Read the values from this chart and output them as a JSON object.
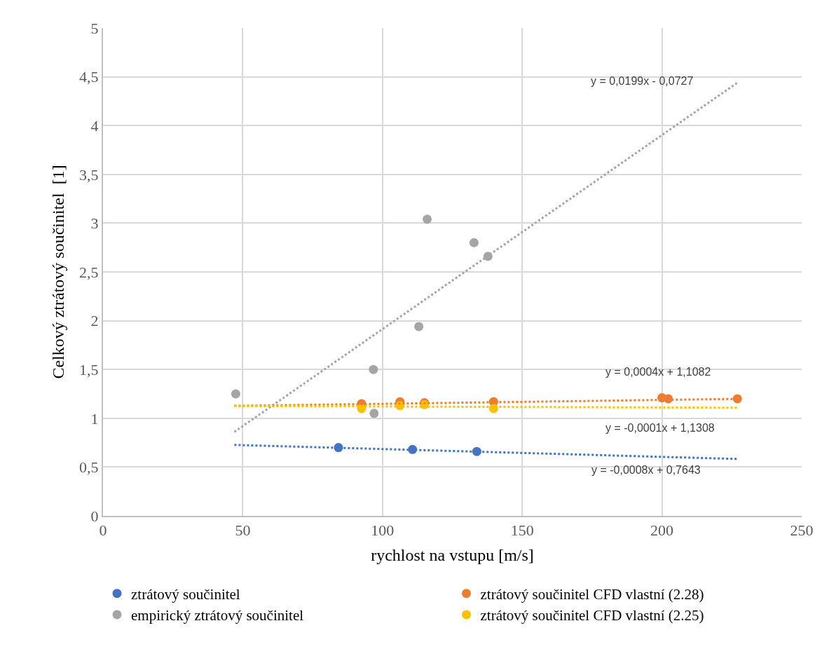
{
  "chart_data": {
    "type": "scatter",
    "xlabel": "rychlost na vstupu [m/s]",
    "ylabel": "Celkový ztrátový součinitel  [1]",
    "xlim": [
      0,
      250
    ],
    "xticks": [
      0,
      50,
      100,
      150,
      200,
      250
    ],
    "ylim": [
      0,
      5
    ],
    "yticks": [
      0,
      {
        "value": 0.5,
        "label": "0,5"
      },
      1,
      {
        "value": 1.5,
        "label": "1,5"
      },
      2,
      {
        "value": 2.5,
        "label": "2,5"
      },
      3,
      {
        "value": 3.5,
        "label": "3,5"
      },
      4,
      {
        "value": 4.5,
        "label": "4,5"
      },
      5
    ],
    "grid": true,
    "legend": "bottom",
    "marker": "circle",
    "series": [
      {
        "name": "ztrátový součinitel",
        "color": "#4472c4",
        "x": [
          84.25,
          110.75,
          133.75
        ],
        "values": [
          0.7,
          0.68,
          0.66
        ]
      },
      {
        "name": "ztrátový součinitel CFD vlastní (2.28)",
        "color": "#ed7d31",
        "x": [
          92.5,
          106.25,
          115,
          139.75,
          200,
          202.25,
          227
        ],
        "values": [
          1.15,
          1.17,
          1.16,
          1.17,
          1.21,
          1.2,
          1.2
        ]
      },
      {
        "name": "empirický ztrátový součinitel",
        "color": "#a5a5a5",
        "x": [
          47.5,
          96.75,
          97,
          113,
          116,
          132.75,
          137.75
        ],
        "values": [
          1.25,
          1.5,
          1.05,
          1.94,
          3.04,
          2.8,
          2.66
        ]
      },
      {
        "name": "ztrátový součinitel CFD vlastní (2.25)",
        "color": "#ffc000",
        "x": [
          92.5,
          106.25,
          115,
          139.75
        ],
        "values": [
          1.1,
          1.13,
          1.14,
          1.1
        ]
      },
      {
        "type": "line",
        "color": "#a5a5a5",
        "line_style": "dotted",
        "marker": "none",
        "x": [
          47,
          227
        ],
        "values": [
          0.86,
          4.44
        ]
      },
      {
        "type": "line",
        "color": "#ed7d31",
        "line_style": "dotted",
        "marker": "none",
        "x": [
          47,
          227
        ],
        "values": [
          1.127,
          1.199
        ]
      },
      {
        "type": "line",
        "color": "#ffc000",
        "line_style": "dotted",
        "marker": "none",
        "x": [
          47,
          227
        ],
        "values": [
          1.126,
          1.108
        ]
      },
      {
        "type": "line",
        "color": "#4472c4",
        "line_style": "dotted",
        "marker": "none",
        "x": [
          47,
          227
        ],
        "values": [
          0.727,
          0.583
        ]
      }
    ],
    "annotations": [
      "y = 0,0199x - 0,0727",
      "y = 0,0004x + 1,1082",
      "y = -0,0001x + 1,1308",
      "y = -0,0008x + 0,7643"
    ]
  }
}
